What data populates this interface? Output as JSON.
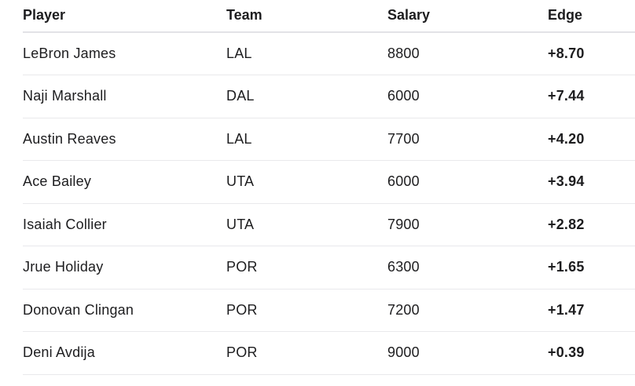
{
  "table": {
    "headers": {
      "player": "Player",
      "team": "Team",
      "salary": "Salary",
      "edge": "Edge"
    },
    "rows": [
      {
        "player": "LeBron James",
        "team": "LAL",
        "salary": "8800",
        "edge": "+8.70"
      },
      {
        "player": "Naji Marshall",
        "team": "DAL",
        "salary": "6000",
        "edge": "+7.44"
      },
      {
        "player": "Austin Reaves",
        "team": "LAL",
        "salary": "7700",
        "edge": "+4.20"
      },
      {
        "player": "Ace Bailey",
        "team": "UTA",
        "salary": "6000",
        "edge": "+3.94"
      },
      {
        "player": "Isaiah Collier",
        "team": "UTA",
        "salary": "7900",
        "edge": "+2.82"
      },
      {
        "player": "Jrue Holiday",
        "team": "POR",
        "salary": "6300",
        "edge": "+1.65"
      },
      {
        "player": "Donovan Clingan",
        "team": "POR",
        "salary": "7200",
        "edge": "+1.47"
      },
      {
        "player": "Deni Avdija",
        "team": "POR",
        "salary": "9000",
        "edge": "+0.39"
      }
    ]
  }
}
